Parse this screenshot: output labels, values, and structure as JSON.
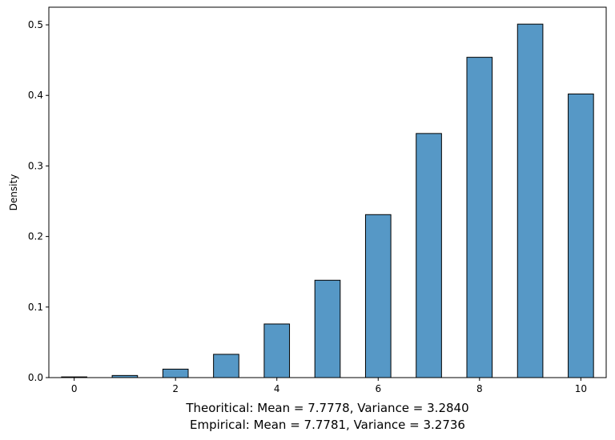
{
  "chart_data": {
    "type": "bar",
    "title": "",
    "xlabel": "",
    "ylabel": "Density",
    "x_ticks": [
      0,
      2,
      4,
      6,
      8,
      10
    ],
    "y_ticks": [
      0.0,
      0.1,
      0.2,
      0.3,
      0.4,
      0.5
    ],
    "y_tick_labels": [
      "0.0",
      "0.1",
      "0.2",
      "0.3",
      "0.4",
      "0.5"
    ],
    "xlim": [
      -0.5,
      10.5
    ],
    "ylim": [
      0,
      0.525
    ],
    "bar_width": 0.5,
    "x": [
      0,
      1,
      2,
      3,
      4,
      5,
      6,
      7,
      8,
      9,
      10
    ],
    "values": [
      0.001,
      0.003,
      0.012,
      0.033,
      0.076,
      0.138,
      0.231,
      0.346,
      0.454,
      0.501,
      0.402
    ],
    "bar_color": "#5698c6",
    "edge_color": "#000000",
    "grid": false,
    "captions": [
      "Theoritical: Mean = 7.7778, Variance = 3.2840",
      "Empirical: Mean = 7.7781, Variance = 3.2736"
    ]
  }
}
